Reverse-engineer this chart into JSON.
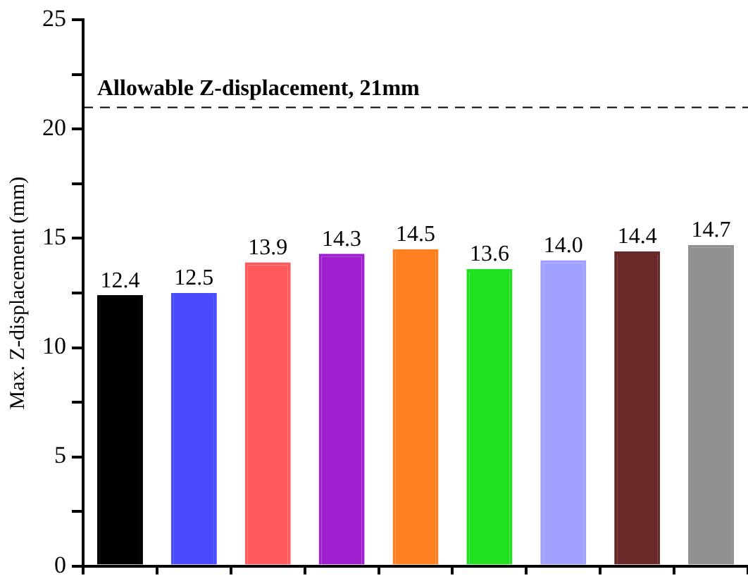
{
  "chart_data": {
    "type": "bar",
    "ylabel": "Max. Z-displacement (mm)",
    "categories": [
      null,
      null,
      null,
      null,
      null,
      null,
      null,
      null,
      null
    ],
    "values": [
      12.4,
      12.5,
      13.9,
      14.3,
      14.5,
      13.6,
      14.0,
      14.4,
      14.7
    ],
    "colors": [
      "#000000",
      "#4a4aff",
      "#ff5a5a",
      "#a020d0",
      "#ff8020",
      "#20e020",
      "#a0a0ff",
      "#6a2a2a",
      "#909090"
    ],
    "data_labels": true,
    "value_labels": [
      "12.4",
      "12.5",
      "13.9",
      "14.3",
      "14.5",
      "13.6",
      "14.0",
      "14.4",
      "14.7"
    ],
    "ylim": [
      0,
      25
    ],
    "yticks": [
      0,
      {
        "value": 2.5,
        "label": null
      },
      5,
      {
        "value": 7.5,
        "label": null
      },
      10,
      {
        "value": 12.5,
        "label": null
      },
      15,
      {
        "value": 17.5,
        "label": null
      },
      20,
      {
        "value": 22.5,
        "label": null
      },
      25
    ],
    "ref_lines": [
      {
        "axis": "y",
        "value": 21,
        "label": "Allowable Z-displacement, 21mm",
        "color": "#000000",
        "line_style": "dashed"
      }
    ],
    "grid": false,
    "legend": false,
    "tick_labels": "y"
  }
}
